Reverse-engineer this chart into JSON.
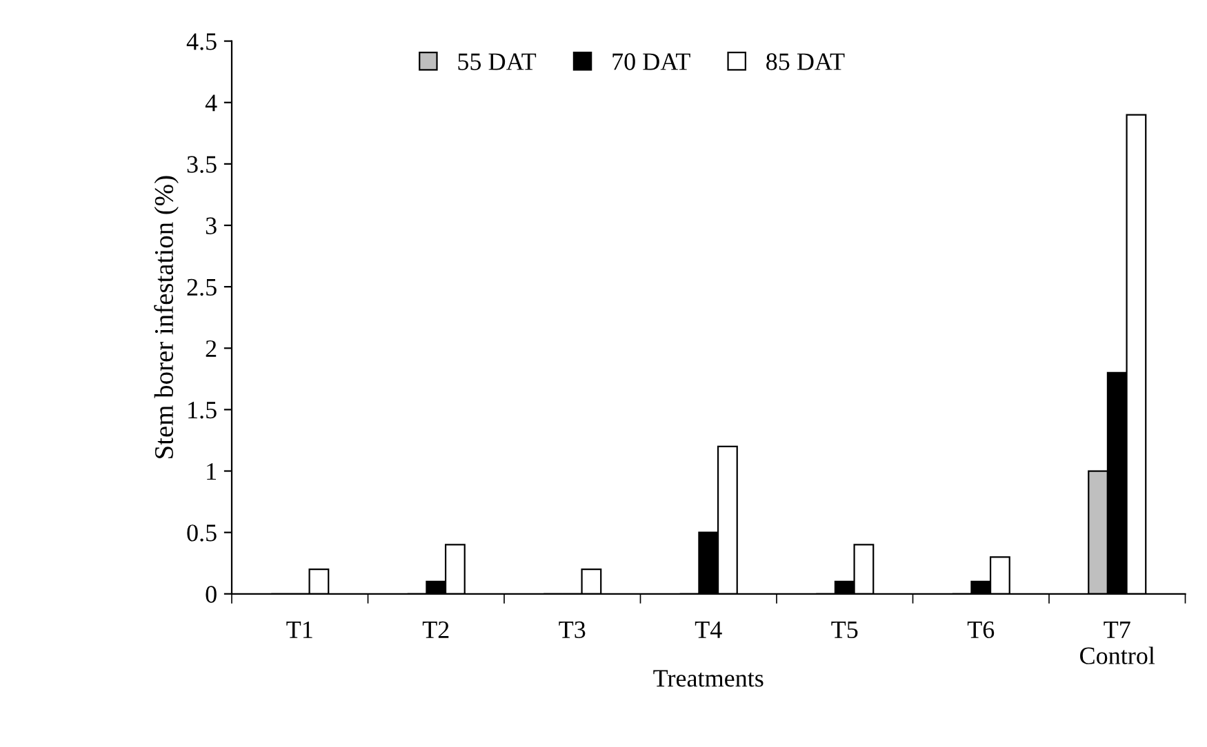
{
  "chart_data": {
    "type": "bar",
    "xlabel": "Treatments",
    "ylabel": "Stem borer infestation (%)",
    "categories": [
      "T1",
      "T2",
      "T3",
      "T4",
      "T5",
      "T6",
      "T7\nControl"
    ],
    "series": [
      {
        "name": "55 DAT",
        "color": "#bfbfbf",
        "values": [
          0,
          0,
          0,
          0,
          0,
          0,
          1.0
        ]
      },
      {
        "name": "70 DAT",
        "color": "#000000",
        "values": [
          0,
          0.1,
          0,
          0.5,
          0.1,
          0.1,
          1.8
        ]
      },
      {
        "name": "85 DAT",
        "color": "#ffffff",
        "values": [
          0.2,
          0.4,
          0.2,
          1.2,
          0.4,
          0.3,
          3.9
        ]
      }
    ],
    "ylim": [
      0,
      4.5
    ],
    "yticks": [
      0,
      0.5,
      1,
      1.5,
      2,
      2.5,
      3,
      3.5,
      4,
      4.5
    ],
    "grid": false,
    "legend": "top"
  }
}
